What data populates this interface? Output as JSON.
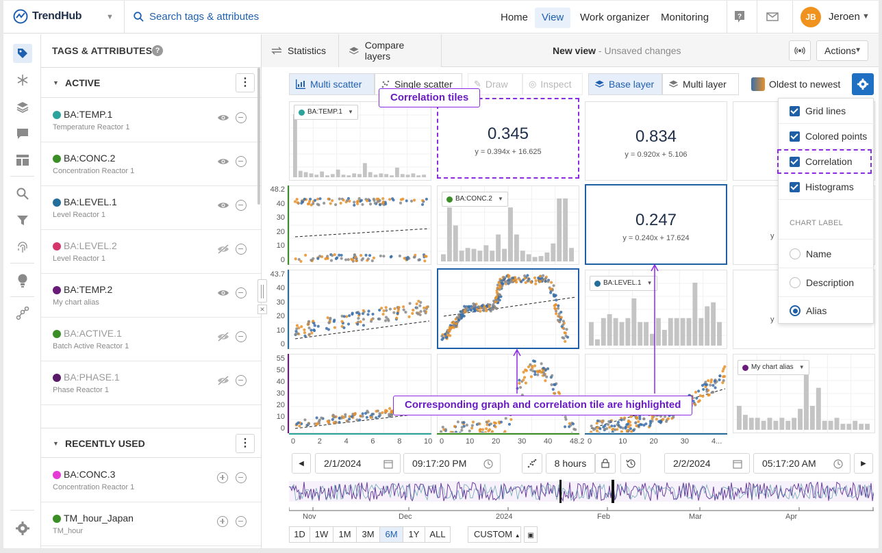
{
  "header": {
    "brand": "TrendHub",
    "search_placeholder": "Search tags & attributes",
    "nav": [
      "Home",
      "View",
      "Work organizer",
      "Monitoring"
    ],
    "active_nav": "View",
    "user_initials": "JB",
    "user_name": "Jeroen"
  },
  "panel": {
    "title": "TAGS & ATTRIBUTES",
    "active_label": "ACTIVE",
    "recent_label": "RECENTLY USED",
    "active_tags": [
      {
        "name": "BA:TEMP.1",
        "desc": "Temperature Reactor 1",
        "color": "#2aa39a",
        "visible": true
      },
      {
        "name": "BA:CONC.2",
        "desc": "Concentration Reactor 1",
        "color": "#3b8e25",
        "visible": true
      },
      {
        "name": "BA:LEVEL.1",
        "desc": "Level Reactor 1",
        "color": "#236e9a",
        "visible": true
      },
      {
        "name": "BA:LEVEL.2",
        "desc": "Level Reactor 1",
        "color": "#d4366a",
        "visible": false
      },
      {
        "name": "BA:TEMP.2",
        "desc": "My chart alias",
        "color": "#6a1b7a",
        "visible": true
      },
      {
        "name": "BA:ACTIVE.1",
        "desc": "Batch Active Reactor 1",
        "color": "#3b8e25",
        "visible": false
      },
      {
        "name": "BA:PHASE.1",
        "desc": "Phase Reactor 1",
        "color": "#5a1a6a",
        "visible": false
      }
    ],
    "recent_tags": [
      {
        "name": "BA:CONC.3",
        "desc": "Concentration Reactor 1",
        "color": "#e53ad6"
      },
      {
        "name": "TM_hour_Japan",
        "desc": "TM_hour",
        "color": "#3b8e25"
      }
    ]
  },
  "tabs": {
    "statistics": "Statistics",
    "compare": "Compare layers",
    "view_title": "New view",
    "unsaved": " - Unsaved changes",
    "actions": "Actions"
  },
  "toolbar": {
    "multi_scatter": "Multi scatter",
    "single_scatter": "Single scatter",
    "draw": "Draw",
    "inspect": "Inspect",
    "base_layer": "Base layer",
    "multi_layer": "Multi layer",
    "order": "Oldest to newest"
  },
  "settings_menu": {
    "grid_lines": "Grid lines",
    "colored_points": "Colored points",
    "correlation": "Correlation",
    "histograms": "Histograms",
    "chart_label_header": "CHART LABEL",
    "options": [
      "Name",
      "Description",
      "Alias"
    ],
    "selected": "Alias"
  },
  "tiles": {
    "corr_r1c2": {
      "value": "0.345",
      "eq": "y = 0.394x + 16.625"
    },
    "corr_r1c3": {
      "value": "0.834",
      "eq": "y = 0.920x + 5.106"
    },
    "corr_r2c3": {
      "value": "0.247",
      "eq": "y = 0.240x + 17.624"
    },
    "chip_r1": "BA:TEMP.1",
    "chip_r2": "BA:CONC.2",
    "chip_r3": "BA:LEVEL.1",
    "chip_r4": "My chart alias",
    "partial_eq": "y"
  },
  "y_ticks": {
    "r2": [
      "48.2",
      "40",
      "30",
      "20",
      "10",
      "0"
    ],
    "r3": [
      "43.7",
      "40",
      "30",
      "20",
      "10",
      "0"
    ],
    "r4": [
      "55",
      "50",
      "40",
      "30",
      "20",
      "10",
      "0"
    ]
  },
  "x_ticks": {
    "c1": [
      "0",
      "2",
      "4",
      "6",
      "8",
      "10"
    ],
    "c2": [
      "0",
      "10",
      "20",
      "30",
      "40",
      "48.2"
    ],
    "c3": [
      "0",
      "10",
      "20",
      "30",
      "4..."
    ]
  },
  "callouts": {
    "corr_tiles": "Correlation tiles",
    "highlight": "Corresponding graph and correlation tile are highlighted"
  },
  "range": {
    "start_date": "2/1/2024",
    "start_time": "09:17:20 PM",
    "duration": "8 hours",
    "end_date": "2/2/2024",
    "end_time": "05:17:20 AM"
  },
  "timeline": {
    "labels": [
      "Nov",
      "Dec",
      "2024",
      "Feb",
      "Mar",
      "Apr"
    ]
  },
  "range_buttons": [
    "1D",
    "1W",
    "1M",
    "3M",
    "6M",
    "1Y",
    "ALL"
  ],
  "range_selected": "6M",
  "custom": "CUSTOM",
  "colors": {
    "accent": "#1f5fa8",
    "callout": "#8a2be2",
    "orange": "#e8902a",
    "blue": "#3a6fa8",
    "grey": "#888888"
  }
}
